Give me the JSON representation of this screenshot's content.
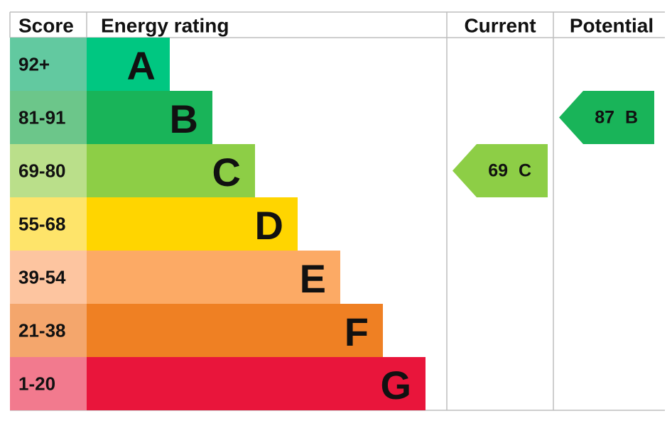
{
  "headers": {
    "score": "Score",
    "rating": "Energy rating",
    "current": "Current",
    "potential": "Potential"
  },
  "bands": [
    {
      "score": "92+",
      "letter": "A",
      "color": "#00c781",
      "score_color": "#62c9a0"
    },
    {
      "score": "81-91",
      "letter": "B",
      "color": "#19b459",
      "score_color": "#6cc68a"
    },
    {
      "score": "69-80",
      "letter": "C",
      "color": "#8dce46",
      "score_color": "#badf8a"
    },
    {
      "score": "55-68",
      "letter": "D",
      "color": "#ffd500",
      "score_color": "#fee46a"
    },
    {
      "score": "39-54",
      "letter": "E",
      "color": "#fcaa65",
      "score_color": "#fdc5a0"
    },
    {
      "score": "21-38",
      "letter": "F",
      "color": "#ef8023",
      "score_color": "#f4a66c"
    },
    {
      "score": "1-20",
      "letter": "G",
      "color": "#e9153b",
      "score_color": "#f27a8e"
    }
  ],
  "current": {
    "score": 69,
    "rating": "C"
  },
  "potential": {
    "score": 87,
    "rating": "B"
  }
}
